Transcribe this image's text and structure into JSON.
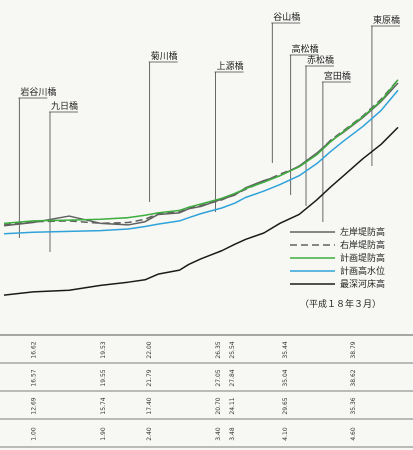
{
  "chart_data": {
    "type": "line",
    "title": "",
    "xlabel": "",
    "ylabel": "",
    "note": "（平成１８年３月）",
    "distance": [
      0,
      1.9,
      4.25,
      6.3,
      8.1,
      9.2,
      10.05,
      11.45,
      12.05,
      12.85,
      14.2,
      15.05,
      15.75,
      16.95,
      18.0,
      19.25,
      20.4,
      21.3,
      22.15,
      23.4,
      24.6,
      25.7
    ],
    "ylim": [
      6,
      37
    ],
    "bridges": [
      {
        "name": "岩谷川橋",
        "distance": 1.0
      },
      {
        "name": "九日橋",
        "distance": 3.0
      },
      {
        "name": "菊川橋",
        "distance": 9.5
      },
      {
        "name": "上源橋",
        "distance": 13.8
      },
      {
        "name": "谷山橋",
        "distance": 17.5
      },
      {
        "name": "高松橋",
        "distance": 18.7
      },
      {
        "name": "赤松橋",
        "distance": 19.7
      },
      {
        "name": "宮田橋",
        "distance": 20.8
      },
      {
        "name": "東原橋",
        "distance": 24.0
      }
    ],
    "series": [
      {
        "name": "左岸堤防高",
        "color": "#606060",
        "dash": "solid",
        "values": [
          16.2,
          16.6,
          17.4,
          16.5,
          16.3,
          16.7,
          17.6,
          17.8,
          18.3,
          18.6,
          19.5,
          20.0,
          20.9,
          21.8,
          22.4,
          23.6,
          25.2,
          26.7,
          27.8,
          29.6,
          31.6,
          33.9
        ]
      },
      {
        "name": "右岸堤防高",
        "color": "#606060",
        "dash": "dashed",
        "values": [
          16.3,
          16.7,
          16.8,
          16.5,
          16.6,
          17.0,
          17.7,
          17.9,
          18.4,
          18.7,
          19.4,
          20.1,
          20.7,
          21.7,
          22.6,
          23.5,
          25.1,
          26.8,
          28.0,
          29.8,
          31.9,
          34.3
        ]
      },
      {
        "name": "計画堤防高",
        "color": "#3fae3f",
        "dash": "solid",
        "values": [
          16.5,
          16.8,
          16.9,
          17.0,
          17.2,
          17.5,
          17.8,
          18.1,
          18.5,
          18.9,
          19.6,
          20.2,
          20.8,
          21.6,
          22.4,
          23.5,
          25.0,
          26.6,
          27.9,
          29.7,
          31.7,
          34.3
        ]
      },
      {
        "name": "計画高水位",
        "color": "#2fa3d9",
        "dash": "solid",
        "values": [
          15.2,
          15.4,
          15.5,
          15.6,
          15.8,
          16.1,
          16.4,
          16.8,
          17.2,
          17.7,
          18.4,
          19.0,
          19.7,
          20.5,
          21.3,
          22.4,
          23.9,
          25.4,
          26.7,
          28.5,
          30.5,
          33.0
        ]
      },
      {
        "name": "最深河床高",
        "color": "#1a1a1a",
        "dash": "solid",
        "values": [
          7.6,
          8.0,
          8.2,
          8.8,
          9.2,
          9.5,
          10.2,
          10.7,
          11.4,
          12.1,
          13.1,
          13.9,
          14.5,
          15.3,
          16.5,
          17.6,
          19.4,
          21.0,
          22.4,
          24.5,
          26.3,
          28.4
        ]
      }
    ],
    "table": {
      "columns": [
        {
          "distance": 1.95,
          "values": [
            "16.62",
            "16.57",
            "12.69",
            "1.00"
          ]
        },
        {
          "distance": 6.5,
          "values": [
            "19.53",
            "19.55",
            "15.74",
            "1.90"
          ]
        },
        {
          "distance": 9.5,
          "values": [
            "22.00",
            "21.79",
            "17.40",
            "2.40"
          ]
        },
        {
          "distance": 14.0,
          "values": [
            "26.35",
            "27.05",
            "20.70",
            "3.40"
          ]
        },
        {
          "distance": 14.9,
          "values": [
            "25.54",
            "27.84",
            "24.11",
            "3.48"
          ]
        },
        {
          "distance": 18.35,
          "values": [
            "35.44",
            "35.04",
            "29.65",
            "4.10"
          ]
        },
        {
          "distance": 22.8,
          "values": [
            "38.79",
            "38.62",
            "35.36",
            "4.60"
          ]
        }
      ]
    }
  }
}
